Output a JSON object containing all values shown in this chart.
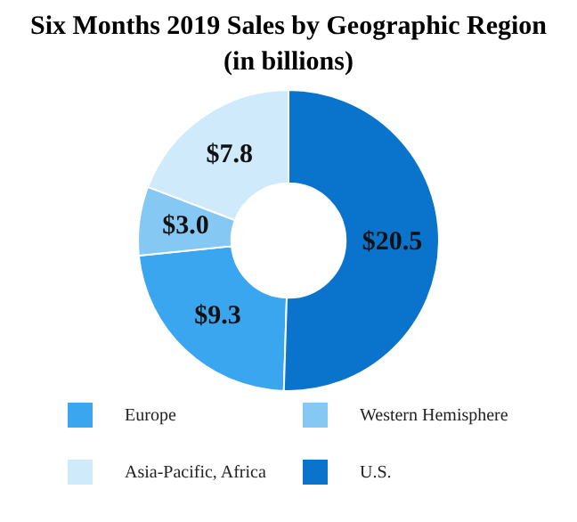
{
  "chart_data": {
    "type": "donut",
    "title": "Six Months 2019 Sales by Geographic Region",
    "subtitle": "(in billions)",
    "categories": [
      "Europe",
      "Western Hemisphere",
      "Asia-Pacific, Africa",
      "U.S."
    ],
    "values": [
      9.3,
      3.0,
      7.8,
      20.5
    ],
    "value_labels": [
      "$9.3",
      "$3.0",
      "$7.8",
      "$20.5"
    ],
    "colors": [
      "#3aa6f0",
      "#86c8f4",
      "#cfeafb",
      "#0a74cc"
    ],
    "legend": "bottom"
  }
}
